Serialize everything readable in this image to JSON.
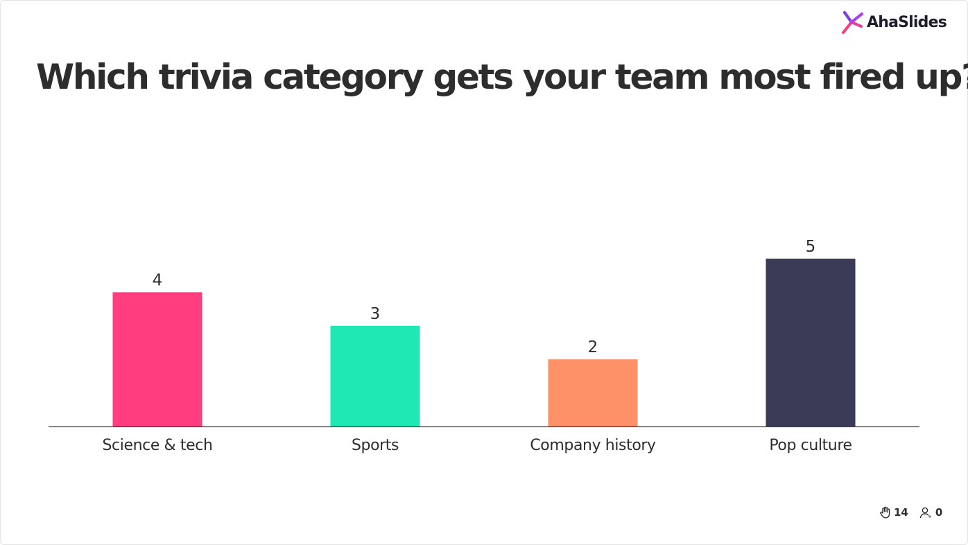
{
  "brand": {
    "name": "AhaSlides",
    "colors": [
      "#7b3fe4",
      "#ff3d7f",
      "#2a2a3c"
    ]
  },
  "question": "Which trivia category gets your team most fired up?",
  "chart_data": {
    "type": "bar",
    "categories": [
      "Science & tech",
      "Sports",
      "Company history",
      "Pop culture"
    ],
    "values": [
      4,
      3,
      2,
      5
    ],
    "colors": [
      "#ff3d7f",
      "#1fe8b4",
      "#ff9168",
      "#3c3b57"
    ],
    "ylim": [
      0,
      5
    ],
    "grid": false,
    "legend": "none"
  },
  "footer": {
    "responses_icon": "hand-icon",
    "responses_count": "14",
    "participants_icon": "user-icon",
    "participants_count": "0"
  }
}
